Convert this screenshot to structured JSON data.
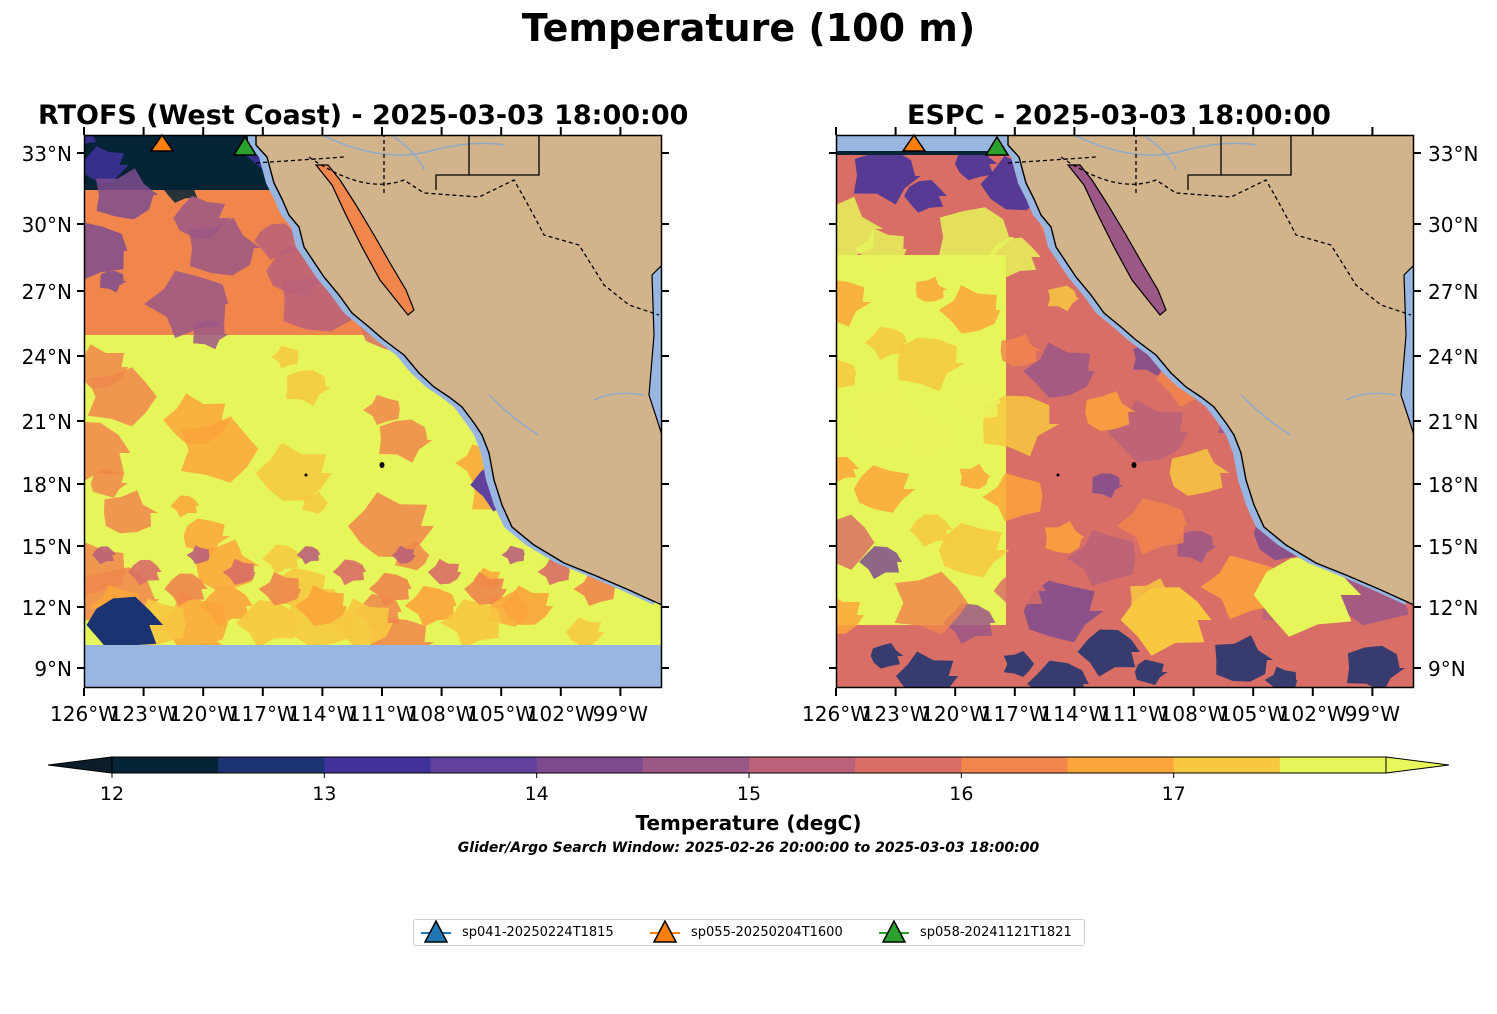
{
  "figure": {
    "suptitle": "Temperature (100 m)"
  },
  "panels": [
    {
      "title": "RTOFS (West Coast) - 2025-03-03 18:00:00"
    },
    {
      "title": "ESPC - 2025-03-03 18:00:00"
    }
  ],
  "lat_ticks": [
    "33°N",
    "30°N",
    "27°N",
    "24°N",
    "21°N",
    "18°N",
    "15°N",
    "12°N",
    "9°N"
  ],
  "lon_ticks": [
    "126°W",
    "123°W",
    "120°W",
    "117°W",
    "114°W",
    "111°W",
    "108°W",
    "105°W",
    "102°W",
    "99°W"
  ],
  "colorbar": {
    "title": "Temperature (degC)",
    "tick_labels": [
      "12",
      "13",
      "14",
      "15",
      "16",
      "17"
    ],
    "min": 12,
    "max": 17.5,
    "step": 0.5,
    "extend": "both",
    "colors": [
      "#052436",
      "#1b3370",
      "#40319b",
      "#60419b",
      "#7e4c8e",
      "#9b5786",
      "#ba6279",
      "#d96e66",
      "#f0864c",
      "#fba53b",
      "#f7c840",
      "#e6f55a"
    ],
    "under_color": "#0d1c2a",
    "over_color": "#e8f75b"
  },
  "search_window": "Glider/Argo Search Window: 2025-02-26 20:00:00 to 2025-03-03 18:00:00",
  "map_colors": {
    "land": "#d2b48c",
    "nodata": "#98b6e0",
    "river": "#8eaacb"
  },
  "legend": [
    {
      "label": "sp041-20250224T1815",
      "color": "#1f77b4"
    },
    {
      "label": "sp055-20250204T1600",
      "color": "#ff7f0e"
    },
    {
      "label": "sp058-20241121T1821",
      "color": "#2ca02c"
    }
  ]
}
